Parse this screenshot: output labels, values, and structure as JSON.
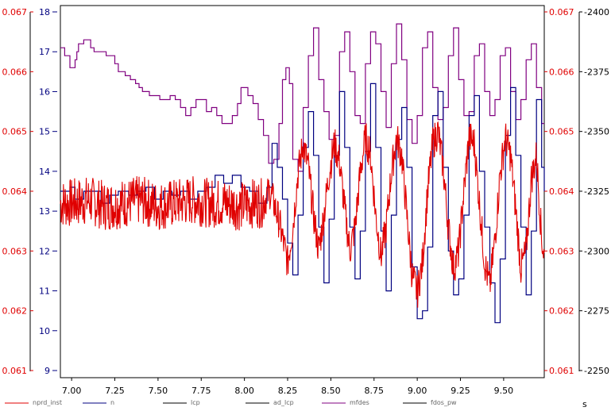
{
  "chart_data": {
    "type": "line",
    "xlabel": "s",
    "x_range": [
      6.935,
      9.735
    ],
    "x_ticks": [
      "7.00",
      "7.25",
      "7.50",
      "7.75",
      "8.00",
      "8.25",
      "8.50",
      "8.75",
      "9.00",
      "9.25",
      "9.50"
    ],
    "axes": {
      "left_outer": {
        "color": "#e00000",
        "ticks": [
          "0.061",
          "0.062",
          "0.063",
          "0.064",
          "0.065",
          "0.066",
          "0.067"
        ],
        "range": [
          0.061,
          0.067
        ]
      },
      "left_inner": {
        "color": "#000080",
        "ticks": [
          "9",
          "10",
          "11",
          "12",
          "13",
          "14",
          "15",
          "16",
          "17",
          "18"
        ],
        "range": [
          9,
          18
        ]
      },
      "right_inner": {
        "color": "#e00000",
        "ticks": [
          "0.061",
          "0.062",
          "0.063",
          "0.064",
          "0.065",
          "0.066",
          "0.067"
        ],
        "range": [
          0.061,
          0.067
        ]
      },
      "right_outer": {
        "color": "#000000",
        "ticks": [
          "2250",
          "2275",
          "2300",
          "2325",
          "2350",
          "2375",
          "2400"
        ],
        "range": [
          2250,
          2400
        ]
      }
    },
    "legend": [
      {
        "label": "nprd_inst",
        "color": "#e00000"
      },
      {
        "label": "n",
        "color": "#000080"
      },
      {
        "label": "lcp",
        "color": "#000000"
      },
      {
        "label": "ad_lcp",
        "color": "#000000"
      },
      {
        "label": "mfdes",
        "color": "#800080"
      },
      {
        "label": "fdos_pw",
        "color": "#000000"
      }
    ],
    "series": [
      {
        "name": "mfdes",
        "axis": "left_inner",
        "color": "#800080",
        "style": "step",
        "points": [
          [
            6.935,
            17.1
          ],
          [
            6.96,
            16.9
          ],
          [
            6.99,
            16.6
          ],
          [
            7.02,
            16.6
          ],
          [
            7.02,
            16.8
          ],
          [
            7.03,
            17.0
          ],
          [
            7.04,
            17.2
          ],
          [
            7.07,
            17.3
          ],
          [
            7.1,
            17.3
          ],
          [
            7.11,
            17.1
          ],
          [
            7.13,
            17.0
          ],
          [
            7.2,
            16.9
          ],
          [
            7.23,
            16.9
          ],
          [
            7.25,
            16.7
          ],
          [
            7.27,
            16.5
          ],
          [
            7.31,
            16.4
          ],
          [
            7.34,
            16.3
          ],
          [
            7.37,
            16.2
          ],
          [
            7.39,
            16.1
          ],
          [
            7.41,
            16.0
          ],
          [
            7.45,
            15.9
          ],
          [
            7.48,
            15.9
          ],
          [
            7.51,
            15.8
          ],
          [
            7.54,
            15.8
          ],
          [
            7.57,
            15.9
          ],
          [
            7.6,
            15.8
          ],
          [
            7.63,
            15.6
          ],
          [
            7.66,
            15.4
          ],
          [
            7.69,
            15.6
          ],
          [
            7.72,
            15.8
          ],
          [
            7.75,
            15.8
          ],
          [
            7.78,
            15.5
          ],
          [
            7.81,
            15.6
          ],
          [
            7.84,
            15.4
          ],
          [
            7.87,
            15.2
          ],
          [
            7.9,
            15.2
          ],
          [
            7.93,
            15.4
          ],
          [
            7.96,
            15.7
          ],
          [
            7.98,
            16.1
          ],
          [
            8.02,
            15.9
          ],
          [
            8.05,
            15.7
          ],
          [
            8.08,
            15.3
          ],
          [
            8.11,
            14.9
          ],
          [
            8.14,
            14.2
          ],
          [
            8.17,
            14.3
          ],
          [
            8.2,
            15.2
          ],
          [
            8.22,
            16.3
          ],
          [
            8.24,
            16.6
          ],
          [
            8.26,
            16.2
          ],
          [
            8.28,
            14.3
          ],
          [
            8.31,
            14.0
          ],
          [
            8.34,
            15.6
          ],
          [
            8.37,
            16.9
          ],
          [
            8.4,
            17.6
          ],
          [
            8.43,
            16.3
          ],
          [
            8.46,
            15.5
          ],
          [
            8.49,
            14.8
          ],
          [
            8.52,
            14.9
          ],
          [
            8.55,
            17.0
          ],
          [
            8.58,
            17.5
          ],
          [
            8.61,
            16.5
          ],
          [
            8.64,
            15.4
          ],
          [
            8.67,
            15.2
          ],
          [
            8.7,
            16.7
          ],
          [
            8.73,
            17.5
          ],
          [
            8.76,
            17.2
          ],
          [
            8.79,
            16.0
          ],
          [
            8.82,
            15.1
          ],
          [
            8.85,
            16.7
          ],
          [
            8.88,
            17.7
          ],
          [
            8.91,
            16.8
          ],
          [
            8.94,
            15.3
          ],
          [
            8.97,
            14.7
          ],
          [
            9.0,
            15.4
          ],
          [
            9.03,
            17.1
          ],
          [
            9.06,
            17.5
          ],
          [
            9.09,
            16.1
          ],
          [
            9.12,
            15.3
          ],
          [
            9.15,
            15.6
          ],
          [
            9.18,
            16.9
          ],
          [
            9.21,
            17.6
          ],
          [
            9.24,
            16.3
          ],
          [
            9.27,
            15.4
          ],
          [
            9.3,
            15.5
          ],
          [
            9.33,
            16.9
          ],
          [
            9.36,
            17.2
          ],
          [
            9.39,
            16.0
          ],
          [
            9.42,
            15.4
          ],
          [
            9.45,
            15.8
          ],
          [
            9.48,
            16.9
          ],
          [
            9.51,
            17.1
          ],
          [
            9.54,
            16.0
          ],
          [
            9.57,
            15.3
          ],
          [
            9.6,
            15.8
          ],
          [
            9.63,
            16.8
          ],
          [
            9.66,
            17.2
          ],
          [
            9.69,
            16.1
          ],
          [
            9.72,
            15.2
          ],
          [
            9.735,
            15.2
          ]
        ]
      },
      {
        "name": "n",
        "axis": "left_inner",
        "color": "#000080",
        "style": "step",
        "points": [
          [
            6.935,
            13.5
          ],
          [
            6.99,
            13.6
          ],
          [
            7.02,
            13.3
          ],
          [
            7.07,
            13.5
          ],
          [
            7.12,
            13.5
          ],
          [
            7.17,
            13.2
          ],
          [
            7.22,
            13.4
          ],
          [
            7.27,
            13.5
          ],
          [
            7.33,
            13.4
          ],
          [
            7.38,
            13.5
          ],
          [
            7.43,
            13.6
          ],
          [
            7.48,
            13.3
          ],
          [
            7.53,
            13.5
          ],
          [
            7.58,
            13.4
          ],
          [
            7.63,
            13.5
          ],
          [
            7.68,
            13.3
          ],
          [
            7.73,
            13.5
          ],
          [
            7.78,
            13.6
          ],
          [
            7.83,
            13.9
          ],
          [
            7.88,
            13.7
          ],
          [
            7.93,
            13.9
          ],
          [
            7.98,
            13.6
          ],
          [
            8.03,
            13.5
          ],
          [
            8.08,
            13.2
          ],
          [
            8.13,
            13.6
          ],
          [
            8.16,
            14.7
          ],
          [
            8.19,
            14.1
          ],
          [
            8.22,
            13.3
          ],
          [
            8.25,
            12.2
          ],
          [
            8.28,
            11.4
          ],
          [
            8.31,
            12.9
          ],
          [
            8.34,
            14.6
          ],
          [
            8.37,
            15.5
          ],
          [
            8.4,
            14.4
          ],
          [
            8.43,
            12.6
          ],
          [
            8.46,
            11.2
          ],
          [
            8.49,
            12.8
          ],
          [
            8.52,
            14.4
          ],
          [
            8.55,
            16.0
          ],
          [
            8.58,
            14.6
          ],
          [
            8.61,
            12.6
          ],
          [
            8.64,
            11.3
          ],
          [
            8.67,
            12.5
          ],
          [
            8.7,
            14.5
          ],
          [
            8.73,
            16.2
          ],
          [
            8.76,
            14.6
          ],
          [
            8.79,
            12.5
          ],
          [
            8.82,
            11.0
          ],
          [
            8.85,
            12.9
          ],
          [
            8.88,
            14.8
          ],
          [
            8.91,
            15.6
          ],
          [
            8.94,
            14.1
          ],
          [
            8.97,
            11.6
          ],
          [
            9.0,
            10.3
          ],
          [
            9.03,
            10.5
          ],
          [
            9.06,
            12.1
          ],
          [
            9.09,
            15.4
          ],
          [
            9.12,
            16.0
          ],
          [
            9.15,
            14.1
          ],
          [
            9.18,
            12.0
          ],
          [
            9.21,
            10.9
          ],
          [
            9.24,
            11.3
          ],
          [
            9.27,
            12.9
          ],
          [
            9.3,
            15.4
          ],
          [
            9.33,
            15.9
          ],
          [
            9.36,
            14.0
          ],
          [
            9.39,
            12.6
          ],
          [
            9.42,
            11.2
          ],
          [
            9.45,
            10.2
          ],
          [
            9.48,
            11.8
          ],
          [
            9.51,
            14.9
          ],
          [
            9.54,
            16.1
          ],
          [
            9.57,
            14.4
          ],
          [
            9.6,
            12.6
          ],
          [
            9.63,
            10.9
          ],
          [
            9.66,
            12.5
          ],
          [
            9.69,
            15.8
          ],
          [
            9.72,
            14.1
          ],
          [
            9.735,
            13.5
          ]
        ]
      },
      {
        "name": "nprd_inst",
        "axis": "left_outer",
        "color": "#e00000",
        "style": "noisy",
        "points": [
          [
            6.935,
            0.0638
          ],
          [
            7.0,
            0.0638
          ],
          [
            7.1,
            0.06385
          ],
          [
            7.2,
            0.06375
          ],
          [
            7.3,
            0.0638
          ],
          [
            7.4,
            0.06385
          ],
          [
            7.5,
            0.06375
          ],
          [
            7.6,
            0.0638
          ],
          [
            7.7,
            0.06385
          ],
          [
            7.8,
            0.0638
          ],
          [
            7.9,
            0.0638
          ],
          [
            7.97,
            0.06375
          ],
          [
            8.05,
            0.0638
          ],
          [
            8.1,
            0.0638
          ],
          [
            8.15,
            0.064
          ],
          [
            8.2,
            0.0635
          ],
          [
            8.25,
            0.0628
          ],
          [
            8.28,
            0.0634
          ],
          [
            8.31,
            0.0643
          ],
          [
            8.34,
            0.0648
          ],
          [
            8.37,
            0.0644
          ],
          [
            8.4,
            0.0636
          ],
          [
            8.43,
            0.063
          ],
          [
            8.46,
            0.0636
          ],
          [
            8.49,
            0.0643
          ],
          [
            8.52,
            0.0648
          ],
          [
            8.55,
            0.0645
          ],
          [
            8.58,
            0.0637
          ],
          [
            8.61,
            0.063
          ],
          [
            8.64,
            0.0634
          ],
          [
            8.67,
            0.0643
          ],
          [
            8.7,
            0.0649
          ],
          [
            8.73,
            0.0646
          ],
          [
            8.76,
            0.0636
          ],
          [
            8.79,
            0.0629
          ],
          [
            8.82,
            0.0634
          ],
          [
            8.85,
            0.0643
          ],
          [
            8.88,
            0.0649
          ],
          [
            8.91,
            0.0646
          ],
          [
            8.94,
            0.0636
          ],
          [
            8.97,
            0.0626
          ],
          [
            9.0,
            0.0623
          ],
          [
            9.03,
            0.0628
          ],
          [
            9.06,
            0.064
          ],
          [
            9.09,
            0.0648
          ],
          [
            9.12,
            0.065
          ],
          [
            9.15,
            0.0644
          ],
          [
            9.18,
            0.0634
          ],
          [
            9.21,
            0.0627
          ],
          [
            9.24,
            0.063
          ],
          [
            9.27,
            0.064
          ],
          [
            9.3,
            0.0649
          ],
          [
            9.33,
            0.0648
          ],
          [
            9.36,
            0.0638
          ],
          [
            9.39,
            0.0628
          ],
          [
            9.42,
            0.0624
          ],
          [
            9.45,
            0.0632
          ],
          [
            9.48,
            0.0643
          ],
          [
            9.51,
            0.0649
          ],
          [
            9.54,
            0.0646
          ],
          [
            9.57,
            0.0637
          ],
          [
            9.6,
            0.0627
          ],
          [
            9.63,
            0.063
          ],
          [
            9.66,
            0.0642
          ],
          [
            9.69,
            0.0646
          ],
          [
            9.72,
            0.0632
          ],
          [
            9.735,
            0.0629
          ]
        ]
      }
    ]
  }
}
